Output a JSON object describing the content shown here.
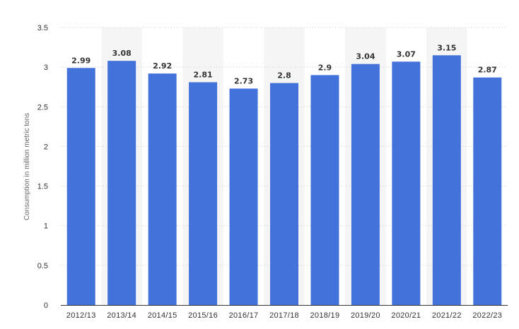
{
  "chart_data": {
    "type": "bar",
    "categories": [
      "2012/13",
      "2013/14",
      "2014/15",
      "2015/16",
      "2016/17",
      "2017/18",
      "2018/19",
      "2019/20",
      "2020/21",
      "2021/22",
      "2022/23"
    ],
    "values": [
      2.99,
      3.08,
      2.92,
      2.81,
      2.73,
      2.8,
      2.9,
      3.04,
      3.07,
      3.15,
      2.87
    ],
    "value_labels": [
      "2.99",
      "3.08",
      "2.92",
      "2.81",
      "2.73",
      "2.8",
      "2.9",
      "3.04",
      "3.07",
      "3.15",
      "2.87"
    ],
    "title": "",
    "xlabel": "",
    "ylabel": "Consumption in million metric tons",
    "ylim": [
      0,
      3.5
    ],
    "yticks": [
      0,
      0.5,
      1,
      1.5,
      2,
      2.5,
      3,
      3.5
    ],
    "ytick_labels": [
      "0",
      "0.5",
      "1",
      "1.5",
      "2",
      "2.5",
      "3",
      "3.5"
    ],
    "grid": true,
    "legend": "none",
    "colors": {
      "bar": "#4472db",
      "band": "#f5f5f5",
      "text": "#333333"
    }
  }
}
